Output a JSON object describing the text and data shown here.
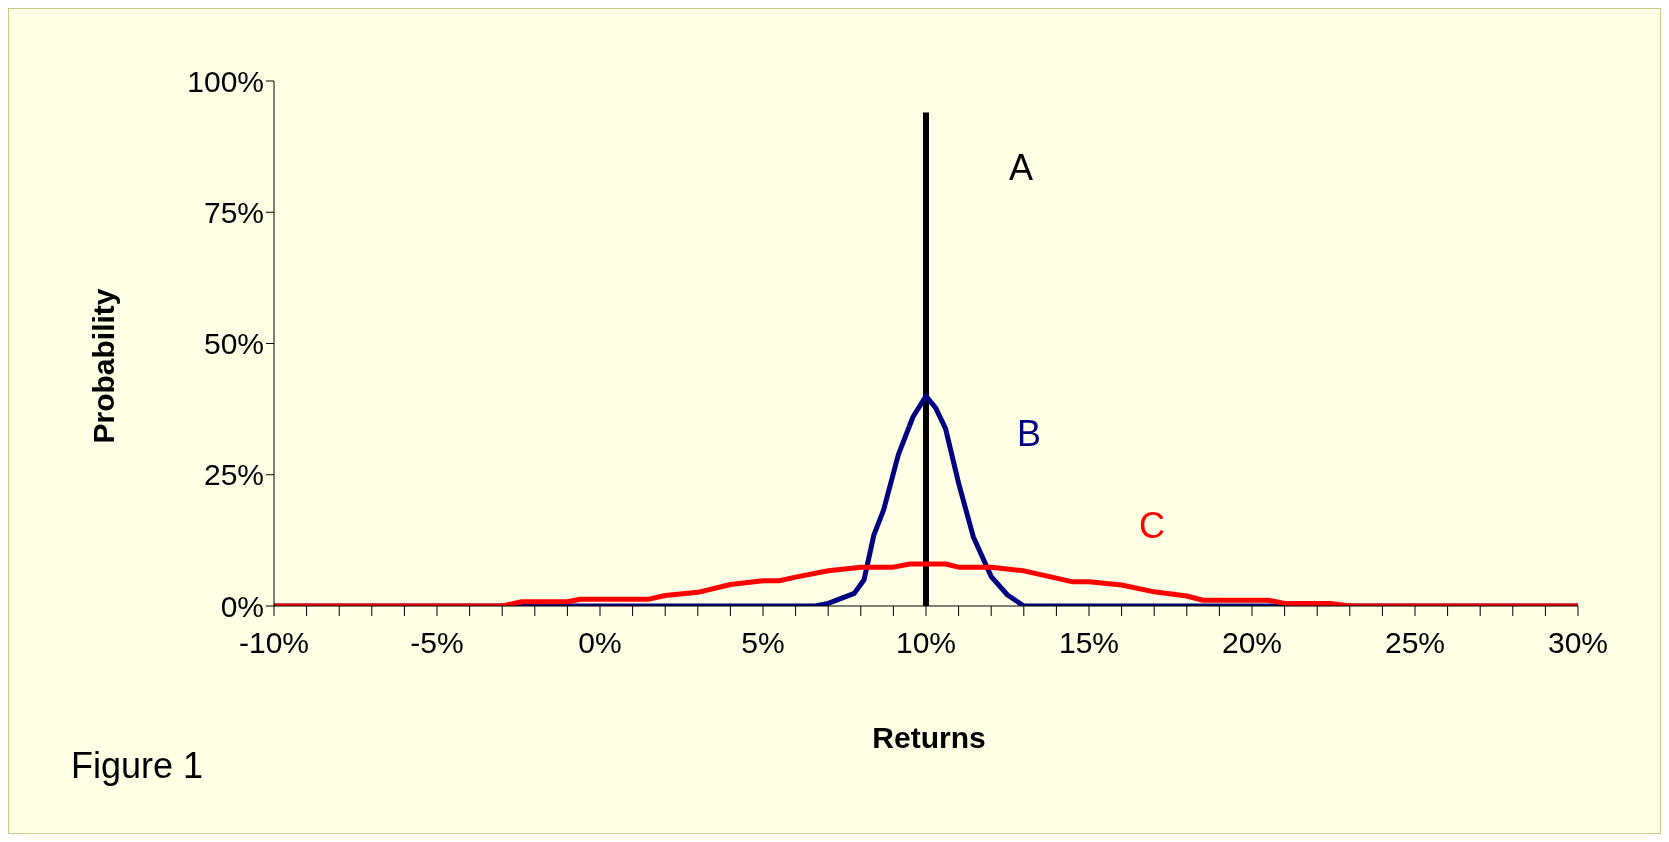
{
  "chart_data": {
    "type": "line",
    "xlabel": "Returns",
    "ylabel": "Probability",
    "annotations": [
      "Figure 1"
    ],
    "marker": "none",
    "xlim": [
      -10,
      30
    ],
    "ylim": [
      0,
      100
    ],
    "yticks": [
      {
        "value": 0,
        "label": "0%"
      },
      {
        "value": 25,
        "label": "25%"
      },
      {
        "value": 50,
        "label": "50%"
      },
      {
        "value": 75,
        "label": "75%"
      },
      {
        "value": 100,
        "label": "100%"
      }
    ],
    "xticks": [
      {
        "value": -10,
        "label": "-10%"
      },
      {
        "value": -9,
        "label": null
      },
      {
        "value": -8,
        "label": null
      },
      {
        "value": -7,
        "label": null
      },
      {
        "value": -6,
        "label": null
      },
      {
        "value": -5,
        "label": "-5%"
      },
      {
        "value": -4,
        "label": null
      },
      {
        "value": -3,
        "label": null
      },
      {
        "value": -2,
        "label": null
      },
      {
        "value": -1,
        "label": null
      },
      {
        "value": 0,
        "label": "0%"
      },
      {
        "value": 1,
        "label": null
      },
      {
        "value": 2,
        "label": null
      },
      {
        "value": 3,
        "label": null
      },
      {
        "value": 4,
        "label": null
      },
      {
        "value": 5,
        "label": "5%"
      },
      {
        "value": 6,
        "label": null
      },
      {
        "value": 7,
        "label": null
      },
      {
        "value": 8,
        "label": null
      },
      {
        "value": 9,
        "label": null
      },
      {
        "value": 10,
        "label": "10%"
      },
      {
        "value": 11,
        "label": null
      },
      {
        "value": 12,
        "label": null
      },
      {
        "value": 13,
        "label": null
      },
      {
        "value": 14,
        "label": null
      },
      {
        "value": 15,
        "label": "15%"
      },
      {
        "value": 16,
        "label": null
      },
      {
        "value": 17,
        "label": null
      },
      {
        "value": 18,
        "label": null
      },
      {
        "value": 19,
        "label": null
      },
      {
        "value": 20,
        "label": "20%"
      },
      {
        "value": 21,
        "label": null
      },
      {
        "value": 22,
        "label": null
      },
      {
        "value": 23,
        "label": null
      },
      {
        "value": 24,
        "label": null
      },
      {
        "value": 25,
        "label": "25%"
      },
      {
        "value": 26,
        "label": null
      },
      {
        "value": 27,
        "label": null
      },
      {
        "value": 28,
        "label": null
      },
      {
        "value": 29,
        "label": null
      },
      {
        "value": 30,
        "label": "30%"
      }
    ],
    "series": [
      {
        "name": "A",
        "color": "#000000",
        "x": [
          10,
          10,
          10
        ],
        "values": [
          0,
          47,
          94
        ]
      },
      {
        "name": "B",
        "color": "#000080",
        "x": [
          -10,
          6.6,
          7,
          7.8,
          8.1,
          8.4,
          8.7,
          9.15,
          9.6,
          10,
          10.3,
          10.6,
          11,
          11.45,
          12,
          12.5,
          13,
          30
        ],
        "values": [
          0,
          0,
          0.5,
          2.4,
          5,
          13.5,
          18.3,
          28.8,
          36,
          40,
          37.7,
          33.8,
          23.4,
          13.2,
          5.6,
          2.1,
          0,
          0
        ]
      },
      {
        "name": "C",
        "color": "#ff0000",
        "x": [
          -10,
          -3,
          -2.4,
          -1,
          -0.6,
          1.5,
          2,
          3,
          4,
          5,
          5.5,
          6,
          7,
          8,
          9,
          9.5,
          10.6,
          11,
          12,
          13,
          14,
          14.5,
          15,
          16,
          17,
          18,
          18.5,
          20.5,
          21,
          22.4,
          23,
          30
        ],
        "values": [
          0,
          0,
          0.8,
          0.8,
          1.3,
          1.3,
          2,
          2.6,
          4.1,
          4.8,
          4.8,
          5.5,
          6.7,
          7.4,
          7.4,
          8,
          8,
          7.4,
          7.4,
          6.7,
          5.3,
          4.6,
          4.6,
          4,
          2.7,
          1.9,
          1.1,
          1.1,
          0.5,
          0.5,
          0,
          0
        ]
      }
    ]
  }
}
